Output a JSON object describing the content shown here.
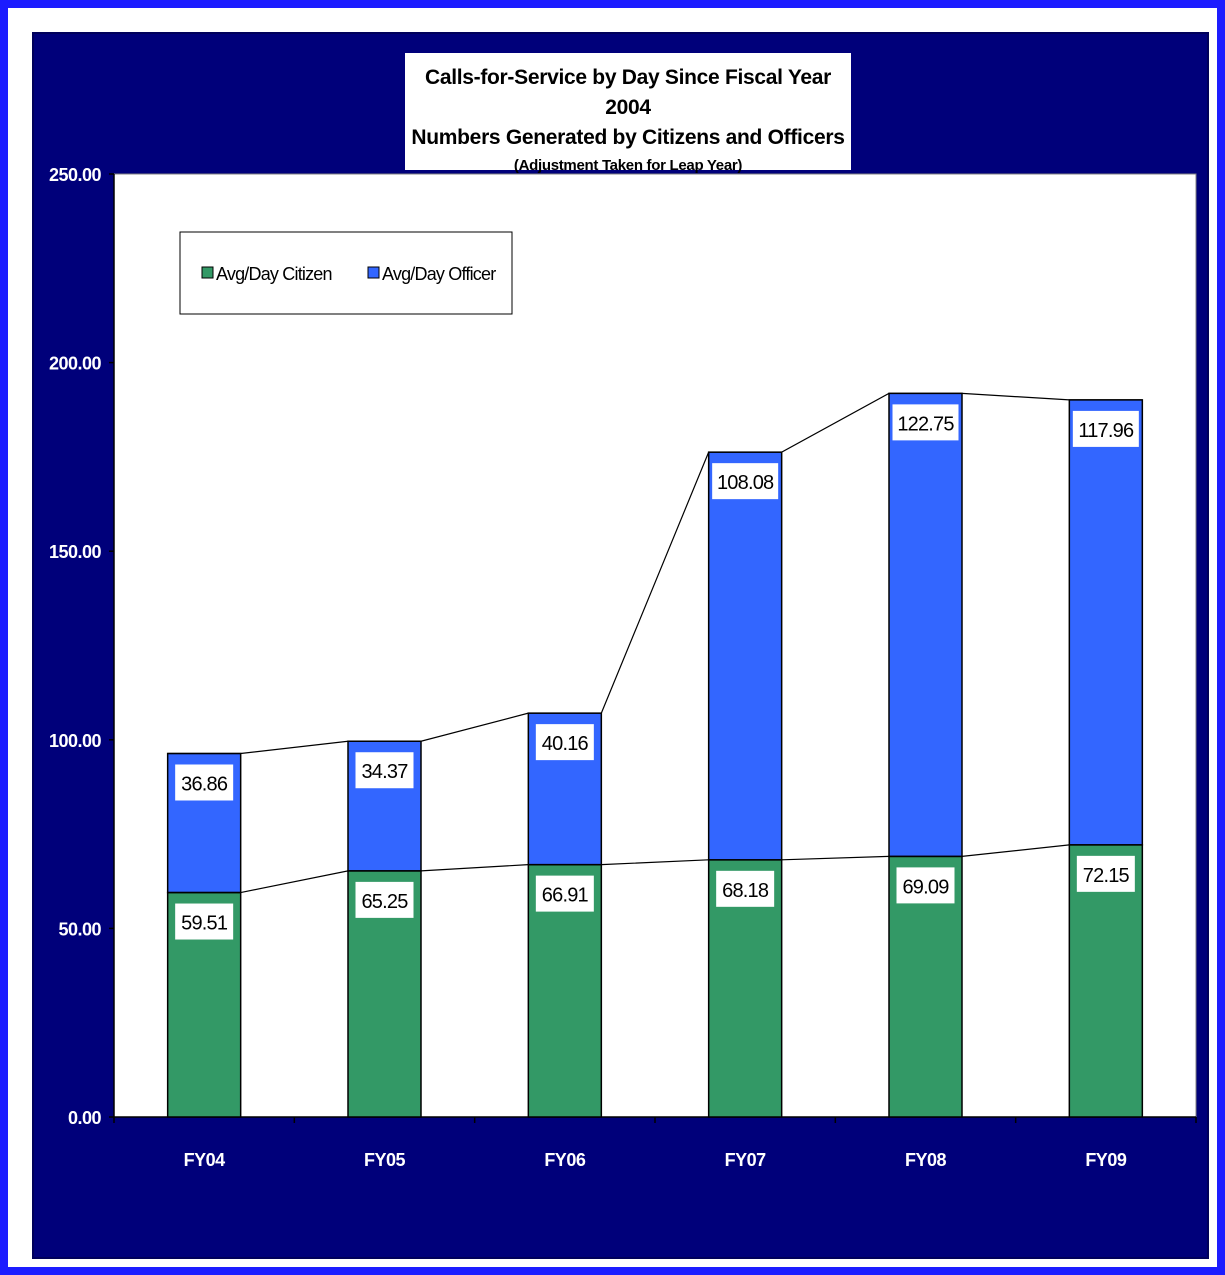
{
  "chart_data": {
    "type": "bar",
    "stacked": true,
    "title": "Calls-for-Service by Day Since Fiscal Year 2004",
    "subtitle": "Numbers Generated by Citizens and Officers",
    "note": "(Adjustment Taken for Leap Year)",
    "categories": [
      "FY04",
      "FY05",
      "FY06",
      "FY07",
      "FY08",
      "FY09"
    ],
    "series": [
      {
        "name": "Avg/Day Citizen",
        "color": "#339966",
        "values": [
          59.51,
          65.25,
          66.91,
          68.18,
          69.09,
          72.15
        ]
      },
      {
        "name": "Avg/Day Officer",
        "color": "#3366ff",
        "values": [
          36.86,
          34.37,
          40.16,
          108.08,
          122.75,
          117.96
        ]
      }
    ],
    "y_tick_labels": [
      "0.00",
      "50.00",
      "100.00",
      "150.00",
      "200.00",
      "250.00"
    ],
    "ylim": [
      0,
      250
    ],
    "ytick_step": 50,
    "series_lines": true,
    "grid": false,
    "legend_position": "top-left",
    "background_color": "#00007a",
    "plot_background": "#ffffff"
  }
}
